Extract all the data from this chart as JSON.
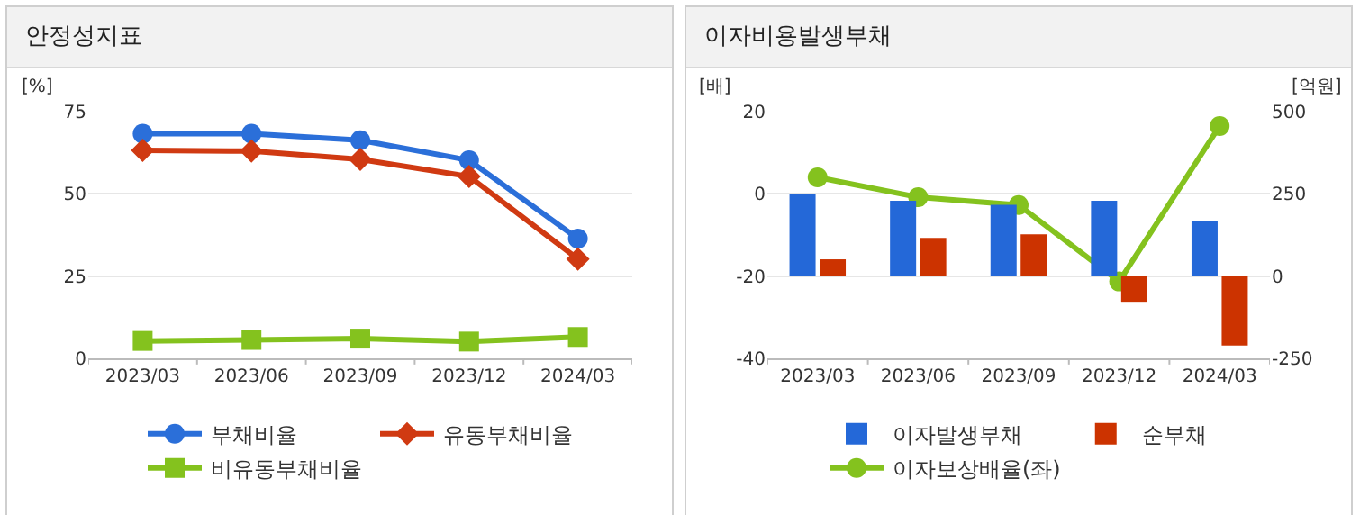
{
  "chart_data": [
    {
      "type": "line",
      "title": "안정성지표",
      "ylabel": "[%]",
      "categories": [
        "2023/03",
        "2023/06",
        "2023/09",
        "2023/12",
        "2024/03"
      ],
      "ylim": [
        0,
        75
      ],
      "yticks": [
        0,
        25,
        50,
        75
      ],
      "grid": "y",
      "legend": "bottom",
      "line_style": "solid",
      "series": [
        {
          "name": "부채비율",
          "color": "#2b6fd9",
          "marker": "circle",
          "values": [
            68.3,
            68.3,
            66.3,
            60.2,
            36.4
          ]
        },
        {
          "name": "유동부채비율",
          "color": "#d03a12",
          "marker": "diamond",
          "values": [
            63.2,
            63.0,
            60.5,
            55.3,
            30.2
          ]
        },
        {
          "name": "비유동부채비율",
          "color": "#84c21e",
          "marker": "square",
          "values": [
            5.3,
            5.6,
            6.0,
            5.1,
            6.5
          ]
        }
      ]
    },
    {
      "type": "bar",
      "title": "이자비용발생부채",
      "ylabel": "[배]",
      "y2label": "[억원]",
      "categories": [
        "2023/03",
        "2023/06",
        "2023/09",
        "2023/12",
        "2024/03"
      ],
      "ylim": [
        -40,
        20
      ],
      "yticks": [
        -40,
        -20,
        0,
        20
      ],
      "y2lim": [
        -250,
        500
      ],
      "y2ticks": [
        -250,
        0,
        250,
        500
      ],
      "grid": "y",
      "legend": "bottom",
      "series": [
        {
          "name": "이자발생부채",
          "color": "#2468d8",
          "axis": "y2",
          "values": [
            250,
            229,
            217,
            229,
            166
          ]
        },
        {
          "name": "순부채",
          "color": "#cc3300",
          "axis": "y2",
          "values": [
            51,
            116,
            127,
            -78,
            -211
          ]
        },
        {
          "name": "이자보상배율(좌)",
          "type": "line",
          "color": "#84c21e",
          "marker": "circle",
          "values": [
            4.0,
            -0.8,
            -2.7,
            -21.3,
            16.5
          ]
        }
      ]
    }
  ]
}
